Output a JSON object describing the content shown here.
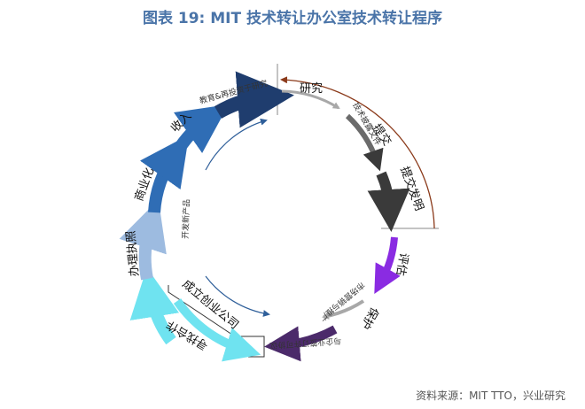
{
  "title": "图表 19: MIT 技术转让办公室技术转让程序",
  "source": "资料来源：MIT TTO，兴业研究",
  "steps": {
    "research": "研究",
    "invention_disclosure": "提交",
    "patent_application": "提交发明",
    "evaluation": "评估",
    "protection": "保护",
    "marketing": "寻找合作",
    "licensing": "办理执照",
    "commercialization": "商业化",
    "income": "收入",
    "reinvest": "教育&再投资于研究"
  },
  "inner": {
    "right_top": "技术披露文件",
    "right_bottom": "市场营销与推广",
    "bottom": "与企业签订许可协议",
    "left_box": "成立创业公司",
    "left_vertical": "开发新产品"
  },
  "colors": {
    "navy": "#1f3d6e",
    "blue": "#2f6db5",
    "light_blue": "#9dbbe0",
    "cyan": "#6fe3f0",
    "gray": "#a8a8a8",
    "dark_gray": "#3a3a3a",
    "purple": "#8a2be2",
    "dark_purple": "#4b2a6a",
    "brown": "#8b3a1a"
  }
}
